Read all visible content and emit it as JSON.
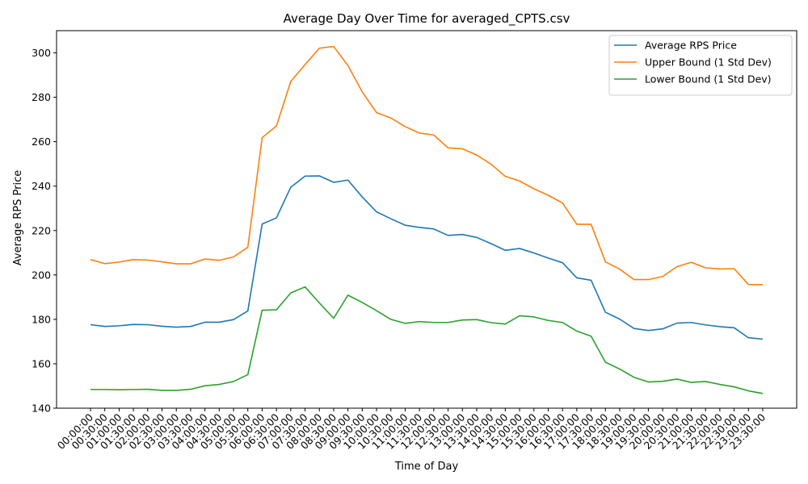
{
  "chart_data": {
    "type": "line",
    "title": "Average Day Over Time for averaged_CPTS.csv",
    "xlabel": "Time of Day",
    "ylabel": "Average RPS Price",
    "ylim": [
      140,
      310
    ],
    "yticks": [
      140,
      160,
      180,
      200,
      220,
      240,
      260,
      280,
      300
    ],
    "grid": false,
    "legend_position": "top-right",
    "categories": [
      "00:00:00",
      "00:30:00",
      "01:00:00",
      "01:30:00",
      "02:00:00",
      "02:30:00",
      "03:00:00",
      "03:30:00",
      "04:00:00",
      "04:30:00",
      "05:00:00",
      "05:30:00",
      "06:00:00",
      "06:30:00",
      "07:00:00",
      "07:30:00",
      "08:00:00",
      "08:30:00",
      "09:00:00",
      "09:30:00",
      "10:00:00",
      "10:30:00",
      "11:00:00",
      "11:30:00",
      "12:00:00",
      "12:30:00",
      "13:00:00",
      "13:30:00",
      "14:00:00",
      "14:30:00",
      "15:00:00",
      "15:30:00",
      "16:00:00",
      "16:30:00",
      "17:00:00",
      "17:30:00",
      "18:00:00",
      "18:30:00",
      "19:00:00",
      "19:30:00",
      "20:00:00",
      "20:30:00",
      "21:00:00",
      "21:30:00",
      "22:00:00",
      "22:30:00",
      "23:00:00",
      "23:30:00"
    ],
    "series": [
      {
        "name": "Average RPS Price",
        "color": "#1f77b4",
        "values": [
          177.6,
          176.8,
          177.1,
          177.7,
          177.6,
          176.9,
          176.5,
          176.8,
          178.7,
          178.7,
          179.9,
          183.8,
          222.9,
          225.7,
          239.5,
          244.5,
          244.6,
          241.7,
          242.7,
          235.1,
          228.4,
          225.3,
          222.4,
          221.4,
          220.7,
          217.8,
          218.2,
          216.9,
          214.1,
          211.1,
          211.9,
          209.9,
          207.6,
          205.5,
          198.7,
          197.6,
          183.2,
          180.1,
          175.9,
          175.0,
          175.7,
          178.3,
          178.6,
          177.5,
          176.7,
          176.2,
          171.7,
          171.1
        ]
      },
      {
        "name": "Upper Bound (1 Std Dev)",
        "color": "#ff7f0e",
        "values": [
          206.9,
          205.1,
          205.8,
          206.9,
          206.7,
          205.9,
          205.0,
          205.0,
          207.2,
          206.6,
          208.1,
          212.5,
          261.8,
          267.1,
          287.1,
          294.7,
          302.1,
          302.9,
          294.3,
          282.4,
          273.1,
          270.7,
          266.8,
          263.9,
          263.0,
          257.2,
          256.8,
          254.0,
          249.9,
          244.4,
          242.3,
          238.8,
          235.9,
          232.4,
          222.8,
          222.8,
          205.9,
          202.6,
          197.9,
          197.9,
          199.3,
          203.7,
          205.7,
          203.2,
          202.7,
          202.8,
          195.7,
          195.6
        ]
      },
      {
        "name": "Lower Bound (1 Std Dev)",
        "color": "#2ca02c",
        "values": [
          148.4,
          148.4,
          148.3,
          148.4,
          148.5,
          148.0,
          148.0,
          148.5,
          150.1,
          150.7,
          152.0,
          155.1,
          184.1,
          184.3,
          191.9,
          194.6,
          187.4,
          180.5,
          190.9,
          187.6,
          183.9,
          180.0,
          178.2,
          179.0,
          178.6,
          178.6,
          179.7,
          179.9,
          178.5,
          177.9,
          181.6,
          181.1,
          179.5,
          178.6,
          174.7,
          172.4,
          160.7,
          157.6,
          153.9,
          151.8,
          152.1,
          153.1,
          151.6,
          152.0,
          150.7,
          149.6,
          147.8,
          146.6
        ]
      }
    ]
  }
}
